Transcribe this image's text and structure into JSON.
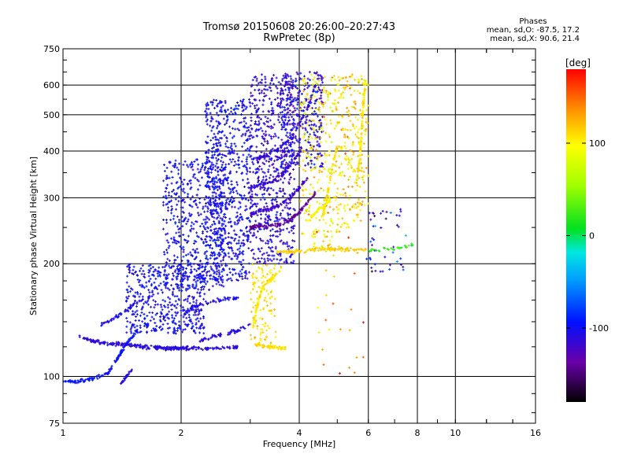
{
  "header": {
    "title_line1": "Tromsø 20150608 20:26:00–20:27:43",
    "title_line2": "RwPretec (8p)"
  },
  "stats": {
    "heading": "Phases",
    "line_o": "mean, sd,O: -87.5, 17.2",
    "line_x": "mean, sd,X: 90.6, 21.4"
  },
  "colorbar": {
    "label": "[deg]",
    "range": [
      -180,
      180
    ],
    "ticks": [
      "100",
      "0",
      "-100"
    ],
    "tick_values": [
      100,
      0,
      -100
    ]
  },
  "chart_data": {
    "type": "scatter",
    "title": "Tromsø 20150608 20:26:00–20:27:43",
    "subtitle": "RwPretec (8p)",
    "xlabel": "Frequency [MHz]",
    "ylabel": "Stationary phase Virtual Height [km]",
    "xscale": "log",
    "yscale": "log",
    "xlim": [
      1,
      16
    ],
    "ylim": [
      75,
      750
    ],
    "x_ticks": [
      1,
      2,
      4,
      6,
      8,
      10,
      16
    ],
    "x_tick_labels": [
      "1",
      "2",
      "4",
      "6",
      "8",
      "10",
      "16"
    ],
    "y_ticks": [
      75,
      100,
      200,
      300,
      400,
      500,
      600,
      750
    ],
    "y_tick_labels": [
      "75",
      "100",
      "200",
      "300",
      "400",
      "500",
      "600",
      "750"
    ],
    "grid": true,
    "color_by": "phase (deg)",
    "traces": [
      {
        "points": [
          [
            1.0,
            97
          ],
          [
            1.1,
            97
          ],
          [
            1.2,
            99
          ],
          [
            1.3,
            102
          ],
          [
            1.35,
            108
          ],
          [
            1.4,
            115
          ],
          [
            1.45,
            122
          ],
          [
            1.5,
            128
          ],
          [
            1.55,
            133
          ]
        ],
        "phase": -95,
        "spread": 2,
        "n": 150
      },
      {
        "points": [
          [
            1.1,
            128
          ],
          [
            1.2,
            124
          ],
          [
            1.3,
            122
          ],
          [
            1.4,
            122
          ],
          [
            1.5,
            121
          ],
          [
            1.6,
            120
          ],
          [
            1.7,
            120
          ],
          [
            1.8,
            119
          ],
          [
            1.9,
            119
          ],
          [
            2.0,
            119
          ],
          [
            2.2,
            119
          ],
          [
            2.4,
            119
          ],
          [
            2.6,
            119
          ],
          [
            2.8,
            120
          ]
        ],
        "phase": -110,
        "spread": 2,
        "n": 280
      },
      {
        "points": [
          [
            1.25,
            138
          ],
          [
            1.35,
            143
          ],
          [
            1.45,
            150
          ],
          [
            1.55,
            158
          ],
          [
            1.7,
            165
          ]
        ],
        "phase": -105,
        "spread": 2,
        "n": 60
      },
      {
        "points": [
          [
            1.4,
            95
          ],
          [
            1.45,
            100
          ],
          [
            1.5,
            104
          ]
        ],
        "phase": -110,
        "spread": 3,
        "n": 25
      },
      {
        "points": [
          [
            2.2,
            124
          ],
          [
            2.4,
            128
          ],
          [
            2.6,
            130
          ],
          [
            2.8,
            133
          ],
          [
            3.0,
            138
          ]
        ],
        "phase": -110,
        "spread": 2,
        "n": 60
      },
      {
        "points": [
          [
            2.0,
            145
          ],
          [
            2.2,
            155
          ],
          [
            2.5,
            160
          ],
          [
            2.8,
            162
          ]
        ],
        "phase": -105,
        "spread": 2,
        "n": 60
      },
      {
        "points": [
          [
            3.1,
            122
          ],
          [
            3.25,
            120
          ],
          [
            3.4,
            120
          ],
          [
            3.55,
            119
          ],
          [
            3.7,
            119
          ]
        ],
        "phase": 110,
        "spread": 2,
        "n": 70
      },
      {
        "points": [
          [
            3.05,
            135
          ],
          [
            3.1,
            148
          ],
          [
            3.15,
            160
          ],
          [
            3.2,
            170
          ],
          [
            3.3,
            178
          ],
          [
            3.45,
            185
          ],
          [
            3.6,
            195
          ]
        ],
        "phase": 105,
        "spread": 3,
        "n": 80
      },
      {
        "points": [
          [
            3.0,
            250
          ],
          [
            3.2,
            252
          ],
          [
            3.4,
            252
          ],
          [
            3.6,
            255
          ],
          [
            3.8,
            262
          ],
          [
            4.0,
            275
          ],
          [
            4.2,
            290
          ],
          [
            4.4,
            310
          ]
        ],
        "phase": -140,
        "spread": 2,
        "n": 110
      },
      {
        "points": [
          [
            3.0,
            272
          ],
          [
            3.2,
            276
          ],
          [
            3.4,
            280
          ],
          [
            3.6,
            288
          ],
          [
            3.8,
            300
          ],
          [
            4.0,
            318
          ],
          [
            4.2,
            340
          ]
        ],
        "phase": -120,
        "spread": 2,
        "n": 90
      },
      {
        "points": [
          [
            3.0,
            320
          ],
          [
            3.2,
            325
          ],
          [
            3.4,
            330
          ],
          [
            3.6,
            345
          ],
          [
            3.8,
            368
          ],
          [
            4.0,
            398
          ]
        ],
        "phase": -115,
        "spread": 2,
        "n": 80
      },
      {
        "points": [
          [
            3.1,
            380
          ],
          [
            3.3,
            390
          ],
          [
            3.6,
            410
          ],
          [
            3.9,
            450
          ],
          [
            4.2,
            520
          ],
          [
            4.4,
            600
          ]
        ],
        "phase": -110,
        "spread": 3,
        "n": 90
      },
      {
        "points": [
          [
            3.5,
            215
          ],
          [
            3.8,
            215
          ],
          [
            4.0,
            216
          ],
          [
            4.3,
            218
          ],
          [
            4.6,
            219
          ],
          [
            5.0,
            219
          ],
          [
            5.4,
            218
          ],
          [
            5.9,
            218
          ]
        ],
        "phase": 115,
        "spread": 2,
        "n": 120
      },
      {
        "points": [
          [
            5.6,
            330
          ],
          [
            5.7,
            380
          ],
          [
            5.75,
            430
          ],
          [
            5.8,
            500
          ],
          [
            5.85,
            560
          ],
          [
            5.9,
            620
          ]
        ],
        "phase": 105,
        "spread": 3,
        "n": 110
      },
      {
        "points": [
          [
            4.6,
            270
          ],
          [
            4.7,
            300
          ],
          [
            4.8,
            340
          ],
          [
            4.9,
            380
          ],
          [
            5.0,
            410
          ]
        ],
        "phase": 110,
        "spread": 3,
        "n": 80
      },
      {
        "points": [
          [
            4.2,
            260
          ],
          [
            4.5,
            280
          ],
          [
            4.8,
            295
          ]
        ],
        "phase": 100,
        "spread": 3,
        "n": 40
      },
      {
        "points": [
          [
            6.0,
            218
          ],
          [
            6.5,
            218
          ],
          [
            7.0,
            220
          ],
          [
            7.5,
            222
          ],
          [
            7.8,
            225
          ]
        ],
        "phase": 20,
        "spread": 3,
        "n": 30
      }
    ],
    "clouds": [
      {
        "x": [
          1.45,
          2.3
        ],
        "y": [
          130,
          200
        ],
        "phase": -100,
        "spread": 10,
        "n": 480
      },
      {
        "x": [
          1.8,
          2.6
        ],
        "y": [
          170,
          380
        ],
        "phase": -100,
        "spread": 12,
        "n": 520
      },
      {
        "x": [
          2.3,
          3.0
        ],
        "y": [
          180,
          550
        ],
        "phase": -100,
        "spread": 12,
        "n": 700
      },
      {
        "x": [
          3.0,
          3.9
        ],
        "y": [
          200,
          640
        ],
        "phase": -110,
        "spread": 14,
        "n": 650
      },
      {
        "x": [
          3.6,
          4.6
        ],
        "y": [
          360,
          650
        ],
        "phase": -110,
        "spread": 18,
        "n": 320
      },
      {
        "x": [
          4.0,
          5.0
        ],
        "y": [
          220,
          640
        ],
        "phase": 105,
        "spread": 30,
        "n": 260
      },
      {
        "x": [
          5.0,
          6.0
        ],
        "y": [
          250,
          640
        ],
        "phase": 110,
        "spread": 25,
        "n": 230
      },
      {
        "x": [
          3.0,
          3.5
        ],
        "y": [
          120,
          200
        ],
        "phase": 110,
        "spread": 15,
        "n": 120
      },
      {
        "x": [
          5.9,
          7.5
        ],
        "y": [
          190,
          280
        ],
        "phase": -105,
        "spread": 40,
        "n": 45
      },
      {
        "x": [
          4.4,
          5.9
        ],
        "y": [
          100,
          250
        ],
        "phase": 130,
        "spread": 40,
        "n": 25
      }
    ]
  }
}
